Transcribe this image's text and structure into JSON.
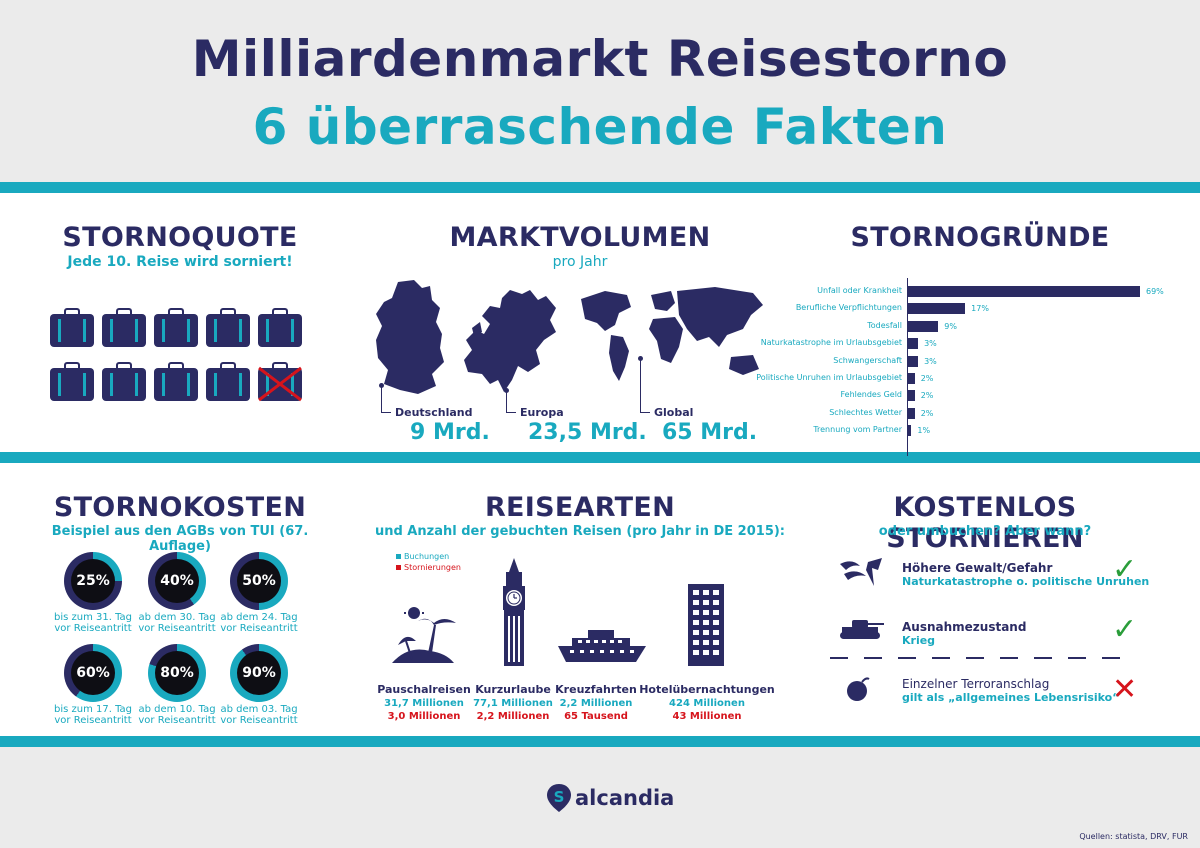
{
  "header": {
    "title_line1": "Milliardenmarkt Reisestorno",
    "title_line2": "6 überraschende Fakten"
  },
  "stornoquote": {
    "title": "STORNOQUOTE",
    "subtitle": "Jede 10. Reise wird sorniert!"
  },
  "marktvolumen": {
    "title": "MARKTVOLUMEN",
    "subtitle": "pro Jahr",
    "items": [
      {
        "label": "Deutschland",
        "value": "9 Mrd."
      },
      {
        "label": "Europa",
        "value": "23,5 Mrd."
      },
      {
        "label": "Global",
        "value": "65 Mrd."
      }
    ]
  },
  "stornogruende": {
    "title": "STORNOGRÜNDE"
  },
  "chart_data": {
    "type": "bar",
    "categories": [
      "Unfall oder Krankheit",
      "Berufliche Verpflichtungen",
      "Todesfall",
      "Naturkatastrophe im Urlaubsgebiet",
      "Schwangerschaft",
      "Politische Unruhen im Urlaubsgebiet",
      "Fehlendes Geld",
      "Schlechtes Wetter",
      "Trennung vom Partner"
    ],
    "values": [
      69,
      17,
      9,
      3,
      3,
      2,
      2,
      2,
      1
    ],
    "value_labels": [
      "69%",
      "17%",
      "9%",
      "3%",
      "3%",
      "2%",
      "2%",
      "2%",
      "1%"
    ],
    "orientation": "horizontal",
    "xlim": [
      0,
      69
    ]
  },
  "stornokosten": {
    "title": "STORNOKOSTEN",
    "subtitle": "Beispiel aus den AGBs von TUI (67. Auflage)",
    "items": [
      {
        "pct": "25%",
        "frac": 0.25,
        "cap1": "bis zum 31. Tag",
        "cap2": "vor Reiseantritt"
      },
      {
        "pct": "40%",
        "frac": 0.4,
        "cap1": "ab dem 30. Tag",
        "cap2": "vor Reiseantritt"
      },
      {
        "pct": "50%",
        "frac": 0.5,
        "cap1": "ab dem 24. Tag",
        "cap2": "vor Reiseantritt"
      },
      {
        "pct": "60%",
        "frac": 0.6,
        "cap1": "bis zum 17. Tag",
        "cap2": "vor Reiseantritt"
      },
      {
        "pct": "80%",
        "frac": 0.8,
        "cap1": "ab dem 10. Tag",
        "cap2": "vor Reiseantritt"
      },
      {
        "pct": "90%",
        "frac": 0.9,
        "cap1": "ab dem 03. Tag",
        "cap2": "vor Reiseantritt"
      }
    ]
  },
  "reisearten": {
    "title": "REISEARTEN",
    "subtitle": "und Anzahl der gebuchten Reisen (pro Jahr in DE 2015):",
    "legend_bookings": "Buchungen",
    "legend_cancellations": "Stornierungen",
    "items": [
      {
        "name": "Pauschalreisen",
        "bookings": "31,7 Millionen",
        "cancellations": "3,0 Millionen"
      },
      {
        "name": "Kurzurlaube",
        "bookings": "77,1 Millionen",
        "cancellations": "2,2 Millionen"
      },
      {
        "name": "Kreuzfahrten",
        "bookings": "2,2 Millionen",
        "cancellations": "65 Tausend"
      },
      {
        "name": "Hotelübernachtungen",
        "bookings": "424 Millionen",
        "cancellations": "43 Millionen"
      }
    ]
  },
  "kostenlos": {
    "title": "KOSTENLOS STORNIEREN",
    "subtitle": "oder umbuchen? Aber wann?",
    "items": [
      {
        "title": "Höhere Gewalt/Gefahr",
        "sub": "Naturkatastrophe o. politische Unruhen",
        "icon": "storm-icon"
      },
      {
        "title": "Ausnahmezustand",
        "sub": "Krieg",
        "icon": "tank-icon"
      },
      {
        "title": "Einzelner Terroranschlag",
        "sub": "gilt als „allgemeines Lebensrisiko“",
        "icon": "bomb-icon"
      }
    ]
  },
  "footer": {
    "logo": "alcandia",
    "sources": "Quellen: statista, DRV, FUR"
  },
  "colors": {
    "navy": "#2b2b63",
    "teal": "#19a9bf",
    "red": "#d6141c",
    "green": "#2a9d3a"
  }
}
